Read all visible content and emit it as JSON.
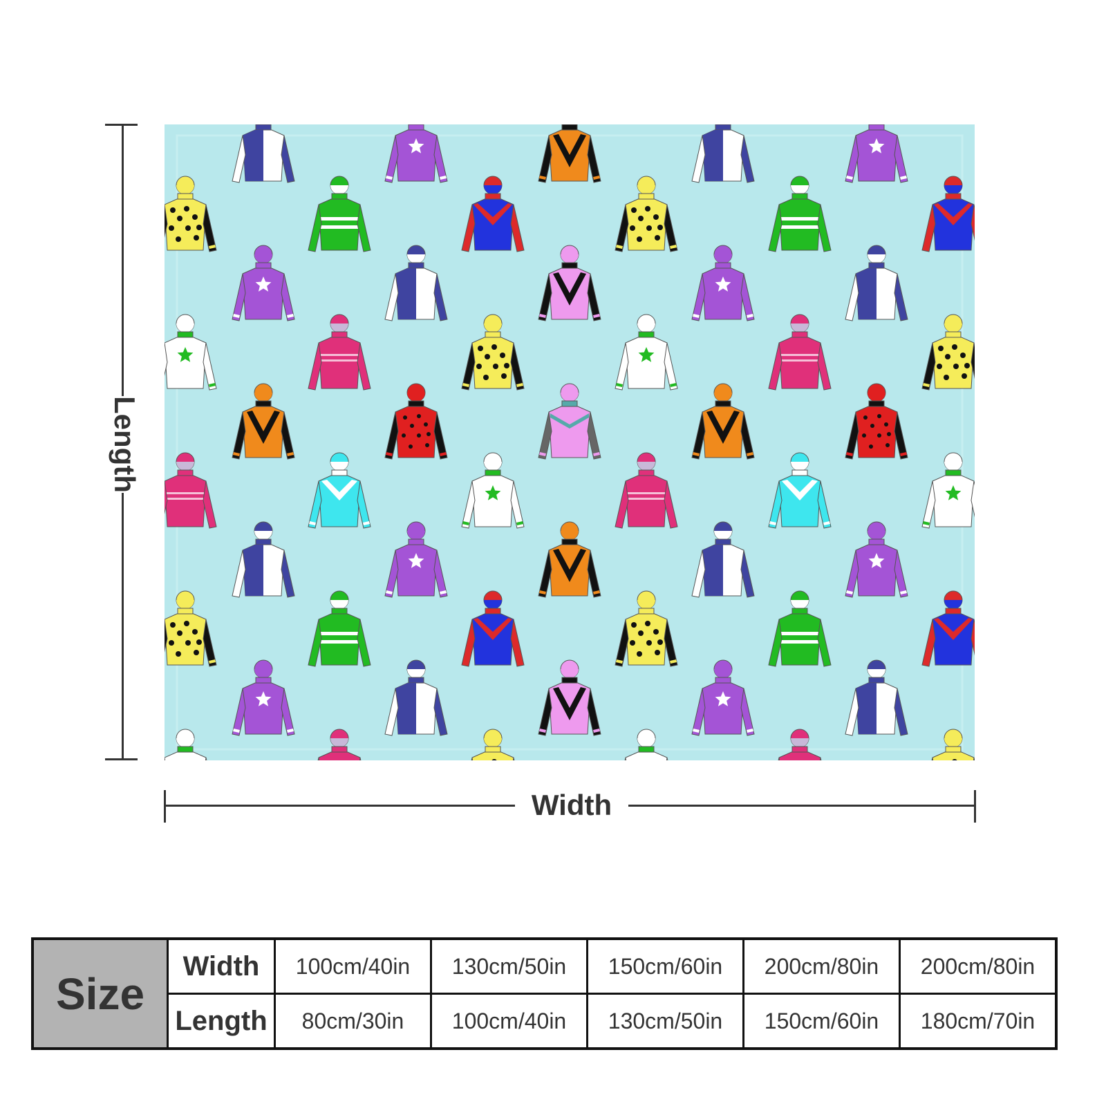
{
  "product": {
    "background_color": "#b8e8ec",
    "pattern": "jockey silks"
  },
  "dimensions": {
    "length_label": "Length",
    "width_label": "Width"
  },
  "size_table": {
    "header": "Size",
    "rows": [
      {
        "label": "Width",
        "values": [
          "100cm/40in",
          "130cm/50in",
          "150cm/60in",
          "200cm/80in",
          "200cm/80in"
        ]
      },
      {
        "label": "Length",
        "values": [
          "80cm/30in",
          "100cm/40in",
          "130cm/50in",
          "150cm/60in",
          "180cm/70in"
        ]
      }
    ]
  }
}
